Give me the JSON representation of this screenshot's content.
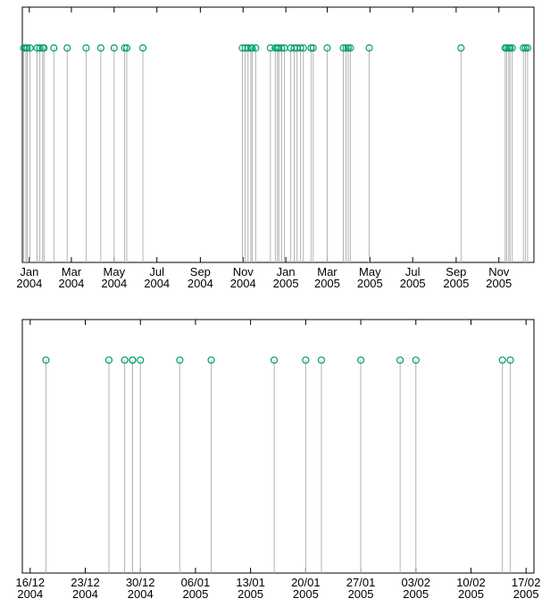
{
  "chart_data": [
    {
      "type": "impulse",
      "color": "#009e73",
      "stem_color": "#b3b3b3",
      "xlim": [
        "2003-12-22",
        "2005-12-21"
      ],
      "xticks": [
        {
          "value": "2004-01-01",
          "label": "Jan\n2004"
        },
        {
          "value": "2004-03-01",
          "label": "Mar\n2004"
        },
        {
          "value": "2004-05-01",
          "label": "May\n2004"
        },
        {
          "value": "2004-07-01",
          "label": "Jul\n2004"
        },
        {
          "value": "2004-09-01",
          "label": "Sep\n2004"
        },
        {
          "value": "2004-11-01",
          "label": "Nov\n2004"
        },
        {
          "value": "2005-01-01",
          "label": "Jan\n2005"
        },
        {
          "value": "2005-03-01",
          "label": "Mar\n2005"
        },
        {
          "value": "2005-05-01",
          "label": "May\n2005"
        },
        {
          "value": "2005-07-01",
          "label": "Jul\n2005"
        },
        {
          "value": "2005-09-01",
          "label": "Sep\n2005"
        },
        {
          "value": "2005-11-01",
          "label": "Nov\n2005"
        }
      ],
      "x": [
        "2003-12-24",
        "2003-12-27",
        "2003-12-29",
        "2004-01-02",
        "2004-01-12",
        "2004-01-16",
        "2004-01-20",
        "2004-01-22",
        "2004-02-05",
        "2004-02-24",
        "2004-03-22",
        "2004-04-12",
        "2004-05-01",
        "2004-05-16",
        "2004-05-19",
        "2004-06-11",
        "2004-10-31",
        "2004-11-04",
        "2004-11-08",
        "2004-11-12",
        "2004-11-14",
        "2004-11-19",
        "2004-12-10",
        "2004-12-17",
        "2004-12-20",
        "2004-12-22",
        "2004-12-26",
        "2004-12-30",
        "2005-01-08",
        "2005-01-13",
        "2005-01-17",
        "2005-01-22",
        "2005-01-26",
        "2005-02-06",
        "2005-02-09",
        "2005-03-01",
        "2005-03-24",
        "2005-03-28",
        "2005-03-31",
        "2005-04-03",
        "2005-04-30",
        "2005-09-08",
        "2005-11-10",
        "2005-11-12",
        "2005-11-15",
        "2005-11-17",
        "2005-11-20",
        "2005-12-06",
        "2005-12-09",
        "2005-12-12"
      ]
    },
    {
      "type": "impulse",
      "color": "#009e73",
      "stem_color": "#b3b3b3",
      "xlim": [
        "2004-12-15",
        "2005-02-18"
      ],
      "xticks": [
        {
          "value": "2004-12-16",
          "label": "16/12\n2004"
        },
        {
          "value": "2004-12-23",
          "label": "23/12\n2004"
        },
        {
          "value": "2004-12-30",
          "label": "30/12\n2004"
        },
        {
          "value": "2005-01-06",
          "label": "06/01\n2005"
        },
        {
          "value": "2005-01-13",
          "label": "13/01\n2005"
        },
        {
          "value": "2005-01-20",
          "label": "20/01\n2005"
        },
        {
          "value": "2005-01-27",
          "label": "27/01\n2005"
        },
        {
          "value": "2005-02-03",
          "label": "03/02\n2005"
        },
        {
          "value": "2005-02-10",
          "label": "10/02\n2005"
        },
        {
          "value": "2005-02-17",
          "label": "17/02\n2005"
        }
      ],
      "x": [
        "2004-12-18",
        "2004-12-26",
        "2004-12-28",
        "2004-12-29",
        "2004-12-29",
        "2004-12-30",
        "2005-01-04",
        "2005-01-08",
        "2005-01-16",
        "2005-01-20",
        "2005-01-22",
        "2005-01-27",
        "2005-02-01",
        "2005-02-03",
        "2005-02-14",
        "2005-02-15"
      ]
    }
  ]
}
